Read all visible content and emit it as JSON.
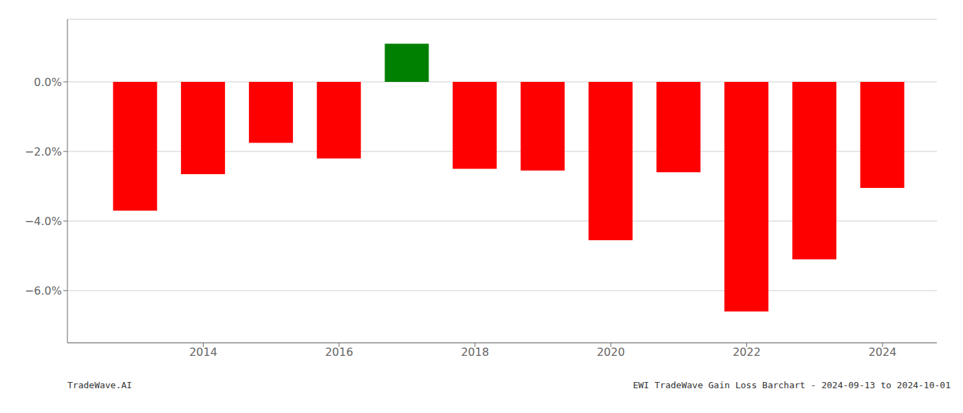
{
  "chart_data": {
    "type": "bar",
    "x": [
      2013,
      2014,
      2015,
      2016,
      2017,
      2018,
      2019,
      2020,
      2021,
      2022,
      2023,
      2024
    ],
    "values": [
      -3.7,
      -2.65,
      -1.75,
      -2.2,
      1.1,
      -2.5,
      -2.55,
      -4.55,
      -2.6,
      -6.6,
      -5.1,
      -3.05
    ],
    "colors": [
      "#ff0000",
      "#ff0000",
      "#ff0000",
      "#ff0000",
      "#008000",
      "#ff0000",
      "#ff0000",
      "#ff0000",
      "#ff0000",
      "#ff0000",
      "#ff0000",
      "#ff0000"
    ],
    "xlim": [
      2012,
      2024.8
    ],
    "xticks": [
      2014,
      2016,
      2018,
      2020,
      2022,
      2024
    ],
    "ylim": [
      -7.5,
      1.8
    ],
    "yticks": [
      {
        "value": 0.0,
        "label": "0.0%"
      },
      {
        "value": -2.0,
        "label": "−2.0%"
      },
      {
        "value": -4.0,
        "label": "−4.0%"
      },
      {
        "value": -6.0,
        "label": "−6.0%"
      }
    ],
    "grid": true,
    "annotations": [
      "TradeWave.AI",
      "EWI TradeWave Gain Loss Barchart - 2024-09-13 to 2024-10-01"
    ]
  }
}
